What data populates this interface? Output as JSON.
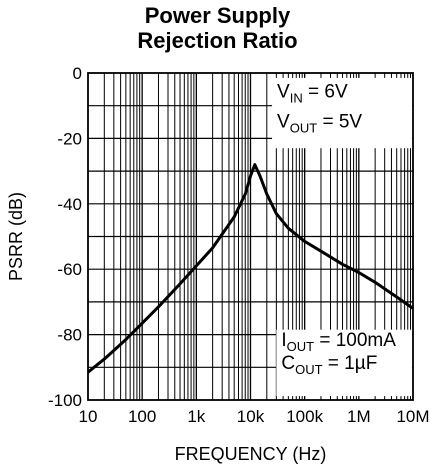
{
  "chart_data": {
    "type": "line",
    "title_line1": "Power Supply",
    "title_line2": "Rejection Ratio",
    "xlabel": "FREQUENCY (Hz)",
    "ylabel": "PSRR (dB)",
    "x_scale": "log",
    "xlim": [
      10,
      10000000
    ],
    "ylim": [
      -100,
      0
    ],
    "grid": true,
    "x_ticks": [
      {
        "value": 10,
        "label": "10"
      },
      {
        "value": 100,
        "label": "100"
      },
      {
        "value": 1000,
        "label": "1k"
      },
      {
        "value": 10000,
        "label": "10k"
      },
      {
        "value": 100000,
        "label": "100k"
      },
      {
        "value": 1000000,
        "label": "1M"
      },
      {
        "value": 10000000,
        "label": "10M"
      }
    ],
    "y_ticks": [
      {
        "value": 0,
        "label": "0"
      },
      {
        "value": -20,
        "label": "-20"
      },
      {
        "value": -40,
        "label": "-40"
      },
      {
        "value": -60,
        "label": "-60"
      },
      {
        "value": -80,
        "label": "-80"
      },
      {
        "value": -100,
        "label": "-100"
      }
    ],
    "annotations": {
      "top_right": [
        {
          "main": "V",
          "sub": "IN",
          "rest": " = 6V"
        },
        {
          "main": "V",
          "sub": "OUT",
          "rest": " = 5V"
        }
      ],
      "bottom_right": [
        {
          "main": "I",
          "sub": "OUT",
          "rest": " = 100mA"
        },
        {
          "main": "C",
          "sub": "OUT",
          "rest": " = 1µF"
        }
      ]
    },
    "series": [
      {
        "x": [
          10,
          20,
          50,
          100,
          200,
          500,
          1000,
          2000,
          5000,
          8000,
          10000,
          12000,
          15000,
          20000,
          30000,
          50000,
          100000,
          200000,
          500000,
          1000000,
          2000000,
          5000000,
          10000000
        ],
        "y": [
          -91.5,
          -87.5,
          -81.5,
          -76.5,
          -71.5,
          -64.5,
          -59,
          -53.5,
          -44,
          -37,
          -31.5,
          -28,
          -31.5,
          -37,
          -43,
          -47.5,
          -51.5,
          -54.5,
          -58.5,
          -61,
          -64,
          -68.5,
          -72
        ]
      }
    ]
  }
}
